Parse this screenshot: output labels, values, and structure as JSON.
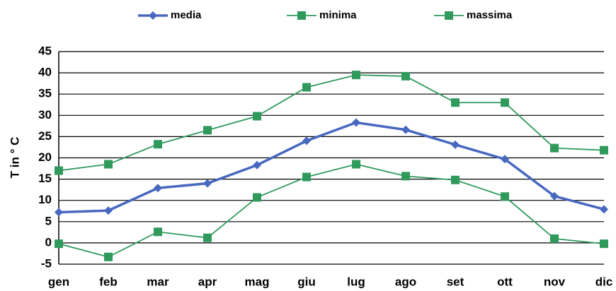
{
  "chart_data": {
    "type": "line",
    "ylabel": "T in ° C",
    "categories": [
      "gen",
      "feb",
      "mar",
      "apr",
      "mag",
      "giu",
      "lug",
      "ago",
      "set",
      "ott",
      "nov",
      "dic"
    ],
    "series": [
      {
        "name": "media",
        "color": "#4868c0",
        "marker": "diamond",
        "linewidth": 3.5,
        "values": [
          7.2,
          7.6,
          12.9,
          14.0,
          18.3,
          24.0,
          28.3,
          26.6,
          23.1,
          19.7,
          11.0,
          7.9
        ]
      },
      {
        "name": "minima",
        "color": "#2f9a5c",
        "marker": "square",
        "linewidth": 1.8,
        "values": [
          -0.2,
          -3.3,
          2.6,
          1.2,
          10.7,
          15.5,
          18.5,
          15.7,
          14.8,
          10.9,
          1.0,
          -0.2
        ]
      },
      {
        "name": "massima",
        "color": "#2f9a5c",
        "marker": "square",
        "linewidth": 1.8,
        "values": [
          17.0,
          18.5,
          23.2,
          26.5,
          29.8,
          36.6,
          39.5,
          39.2,
          33.0,
          33.0,
          22.3,
          21.8
        ]
      }
    ],
    "ylim": [
      -5,
      45
    ],
    "yticks": [
      -5,
      0,
      5,
      10,
      15,
      20,
      25,
      30,
      35,
      40,
      45
    ],
    "grid": true
  }
}
